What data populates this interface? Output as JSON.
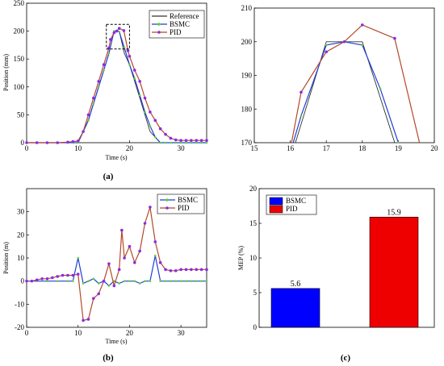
{
  "colors": {
    "reference": "#333333",
    "bsmc": "#1f3fd6",
    "pid": "#b5482a",
    "bsmc_marker": "#5bcf3a",
    "pid_marker": "#8a2be2",
    "bar_bsmc": "#0000ff",
    "bar_pid": "#ee0000"
  },
  "chart_data": [
    {
      "id": "a",
      "type": "line",
      "caption": "(a)",
      "xlabel": "Time (s)",
      "ylabel": "Position (mm)",
      "xlim": [
        0,
        35
      ],
      "ylim": [
        0,
        250
      ],
      "xticks": [
        "0",
        "10",
        "20",
        "30"
      ],
      "yticks": [
        "0",
        "50",
        "100",
        "150",
        "200",
        "250"
      ],
      "xtick_values": [
        0,
        10,
        20,
        30
      ],
      "ytick_values": [
        0,
        50,
        100,
        150,
        200,
        250
      ],
      "legend": [
        "Reference",
        "BSMC",
        "PID"
      ],
      "legend_position": "top-right",
      "zoom_box": {
        "x": [
          15.5,
          20
        ],
        "y": [
          168,
          212
        ]
      },
      "series": [
        {
          "name": "Reference",
          "x": [
            0,
            10,
            12,
            14,
            16,
            17,
            18,
            19,
            20,
            22,
            24,
            26,
            35
          ],
          "y": [
            0,
            0,
            40,
            100,
            160,
            200,
            200,
            160,
            140,
            80,
            20,
            0,
            0
          ]
        },
        {
          "name": "BSMC",
          "x": [
            0,
            2,
            4,
            6,
            8,
            9,
            10,
            11,
            12,
            13,
            14,
            15,
            16,
            17,
            17.5,
            18,
            19,
            20,
            21,
            22,
            23,
            24,
            25,
            26,
            27,
            28,
            29,
            30,
            31,
            32,
            33,
            34,
            35
          ],
          "y": [
            0,
            0,
            0,
            0,
            0,
            0,
            0,
            20,
            40,
            70,
            100,
            130,
            160,
            200,
            200,
            199,
            170,
            140,
            115,
            85,
            55,
            30,
            10,
            0,
            0,
            0,
            0,
            0,
            0,
            0,
            0,
            0,
            0
          ]
        },
        {
          "name": "PID",
          "x": [
            0,
            2,
            4,
            6,
            8,
            9,
            10,
            11,
            12,
            13,
            14,
            15,
            16,
            16.3,
            17,
            17.5,
            18,
            18.9,
            19.7,
            20,
            21,
            22,
            23,
            24,
            25,
            26,
            27,
            28,
            29,
            30,
            31,
            32,
            33,
            34,
            35
          ],
          "y": [
            0,
            0,
            0,
            0,
            1,
            2,
            3,
            20,
            50,
            80,
            110,
            140,
            170,
            185,
            197,
            200,
            205,
            201,
            165,
            155,
            130,
            110,
            80,
            55,
            40,
            25,
            15,
            8,
            5,
            4,
            4,
            4,
            4,
            4,
            4
          ]
        }
      ]
    },
    {
      "id": "a-zoom",
      "type": "line",
      "xlim": [
        15,
        20
      ],
      "ylim": [
        170,
        210
      ],
      "xticks": [
        "15",
        "16",
        "17",
        "18",
        "19",
        "20"
      ],
      "yticks": [
        "170",
        "180",
        "190",
        "200",
        "210"
      ],
      "xtick_values": [
        15,
        16,
        17,
        18,
        19,
        20
      ],
      "ytick_values": [
        170,
        180,
        190,
        200,
        210
      ],
      "series": [
        {
          "name": "Reference",
          "x": [
            15.5,
            16,
            17,
            18,
            18.6,
            19.2
          ],
          "y": [
            150,
            165,
            200,
            200,
            180,
            160
          ]
        },
        {
          "name": "BSMC",
          "x": [
            15.5,
            16,
            16.3,
            17,
            17.5,
            18,
            18.5,
            19,
            19.2
          ],
          "y": [
            150,
            167,
            178,
            199,
            200,
            199,
            186,
            170,
            164
          ]
        },
        {
          "name": "PID",
          "x": [
            15.5,
            16,
            16.3,
            17,
            17.5,
            18,
            18.9,
            19.7,
            19.8
          ],
          "y": [
            150,
            168,
            185,
            197,
            200,
            205,
            201,
            165,
            160
          ]
        }
      ]
    },
    {
      "id": "b",
      "type": "line",
      "caption": "(b)",
      "xlabel": "Time (s)",
      "ylabel": "Position (m)",
      "xlim": [
        0,
        35
      ],
      "ylim": [
        -20,
        40
      ],
      "xticks": [
        "0",
        "10",
        "20",
        "30"
      ],
      "yticks": [
        "-20",
        "-10",
        "0",
        "10",
        "20",
        "30"
      ],
      "xtick_values": [
        0,
        10,
        20,
        30
      ],
      "ytick_values": [
        -20,
        -10,
        0,
        10,
        20,
        30
      ],
      "legend": [
        "BSMC",
        "PID"
      ],
      "legend_position": "top-right",
      "series": [
        {
          "name": "BSMC",
          "x": [
            0,
            2,
            4,
            6,
            8,
            9,
            10,
            11,
            12,
            13,
            14,
            15,
            16,
            17,
            18,
            19,
            20,
            21,
            22,
            23,
            24,
            25,
            26,
            27,
            28,
            29,
            30,
            31,
            32,
            33,
            34,
            35
          ],
          "y": [
            0,
            0,
            0,
            0,
            0,
            0,
            10,
            -1,
            0,
            1,
            -1,
            0,
            -2,
            0,
            -1,
            0,
            0,
            0,
            -1,
            0,
            0,
            11,
            0,
            0,
            0,
            0,
            0,
            0,
            0,
            0,
            0,
            0
          ]
        },
        {
          "name": "PID",
          "x": [
            0,
            1,
            2,
            3,
            4,
            5,
            6,
            7,
            8,
            9,
            10,
            11,
            12,
            13,
            14,
            15,
            16,
            17,
            18,
            18.5,
            19,
            20,
            21,
            22,
            23,
            24,
            25,
            26,
            27,
            28,
            29,
            30,
            31,
            32,
            33,
            34,
            35
          ],
          "y": [
            0,
            0,
            0.5,
            1,
            1,
            1.5,
            2,
            2.5,
            2.5,
            2.5,
            3,
            -17,
            -16.5,
            -7.5,
            -5.5,
            0,
            7.5,
            -2,
            5,
            22,
            10,
            15,
            8,
            13,
            25,
            32,
            17,
            8,
            5,
            4.5,
            4.5,
            5,
            5,
            5,
            5,
            5,
            5
          ]
        }
      ]
    },
    {
      "id": "c",
      "type": "bar",
      "caption": "(c)",
      "ylabel": "MEP (%)",
      "ylim": [
        0,
        20
      ],
      "yticks": [
        "0",
        "5",
        "10",
        "15",
        "20"
      ],
      "ytick_values": [
        0,
        5,
        10,
        15,
        20
      ],
      "categories": [
        "BSMC",
        "PID"
      ],
      "values": [
        5.6,
        15.9
      ],
      "value_labels": [
        "5.6",
        "15.9"
      ],
      "legend": [
        "BSMC",
        "PID"
      ],
      "legend_position": "top-left"
    }
  ]
}
